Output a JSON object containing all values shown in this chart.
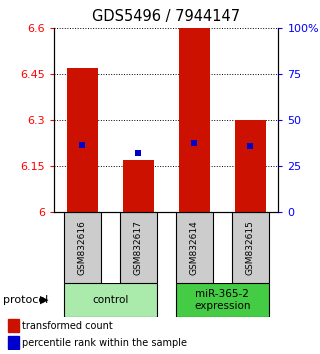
{
  "title": "GDS5496 / 7944147",
  "samples": [
    "GSM832616",
    "GSM832617",
    "GSM832614",
    "GSM832615"
  ],
  "bar_tops": [
    6.47,
    6.17,
    6.6,
    6.3
  ],
  "bar_bottom": 6.0,
  "blue_y": [
    6.22,
    6.195,
    6.225,
    6.215
  ],
  "ylim": [
    6.0,
    6.6
  ],
  "y_ticks_left": [
    6.0,
    6.15,
    6.3,
    6.45,
    6.6
  ],
  "y_ticks_right": [
    0,
    25,
    50,
    75,
    100
  ],
  "y_ticks_right_labels": [
    "0",
    "25",
    "50",
    "75",
    "100%"
  ],
  "groups": [
    {
      "label": "control",
      "samples": [
        0,
        1
      ],
      "color": "#aaeaaa"
    },
    {
      "label": "miR-365-2\nexpression",
      "samples": [
        2,
        3
      ],
      "color": "#44cc44"
    }
  ],
  "bar_color": "#cc1100",
  "blue_color": "#0000cc",
  "bar_width": 0.55,
  "background_color": "#ffffff",
  "legend_red_label": "transformed count",
  "legend_blue_label": "percentile rank within the sample",
  "protocol_label": "protocol",
  "sample_box_color": "#cccccc",
  "title_fontsize": 10.5,
  "tick_fontsize": 8
}
